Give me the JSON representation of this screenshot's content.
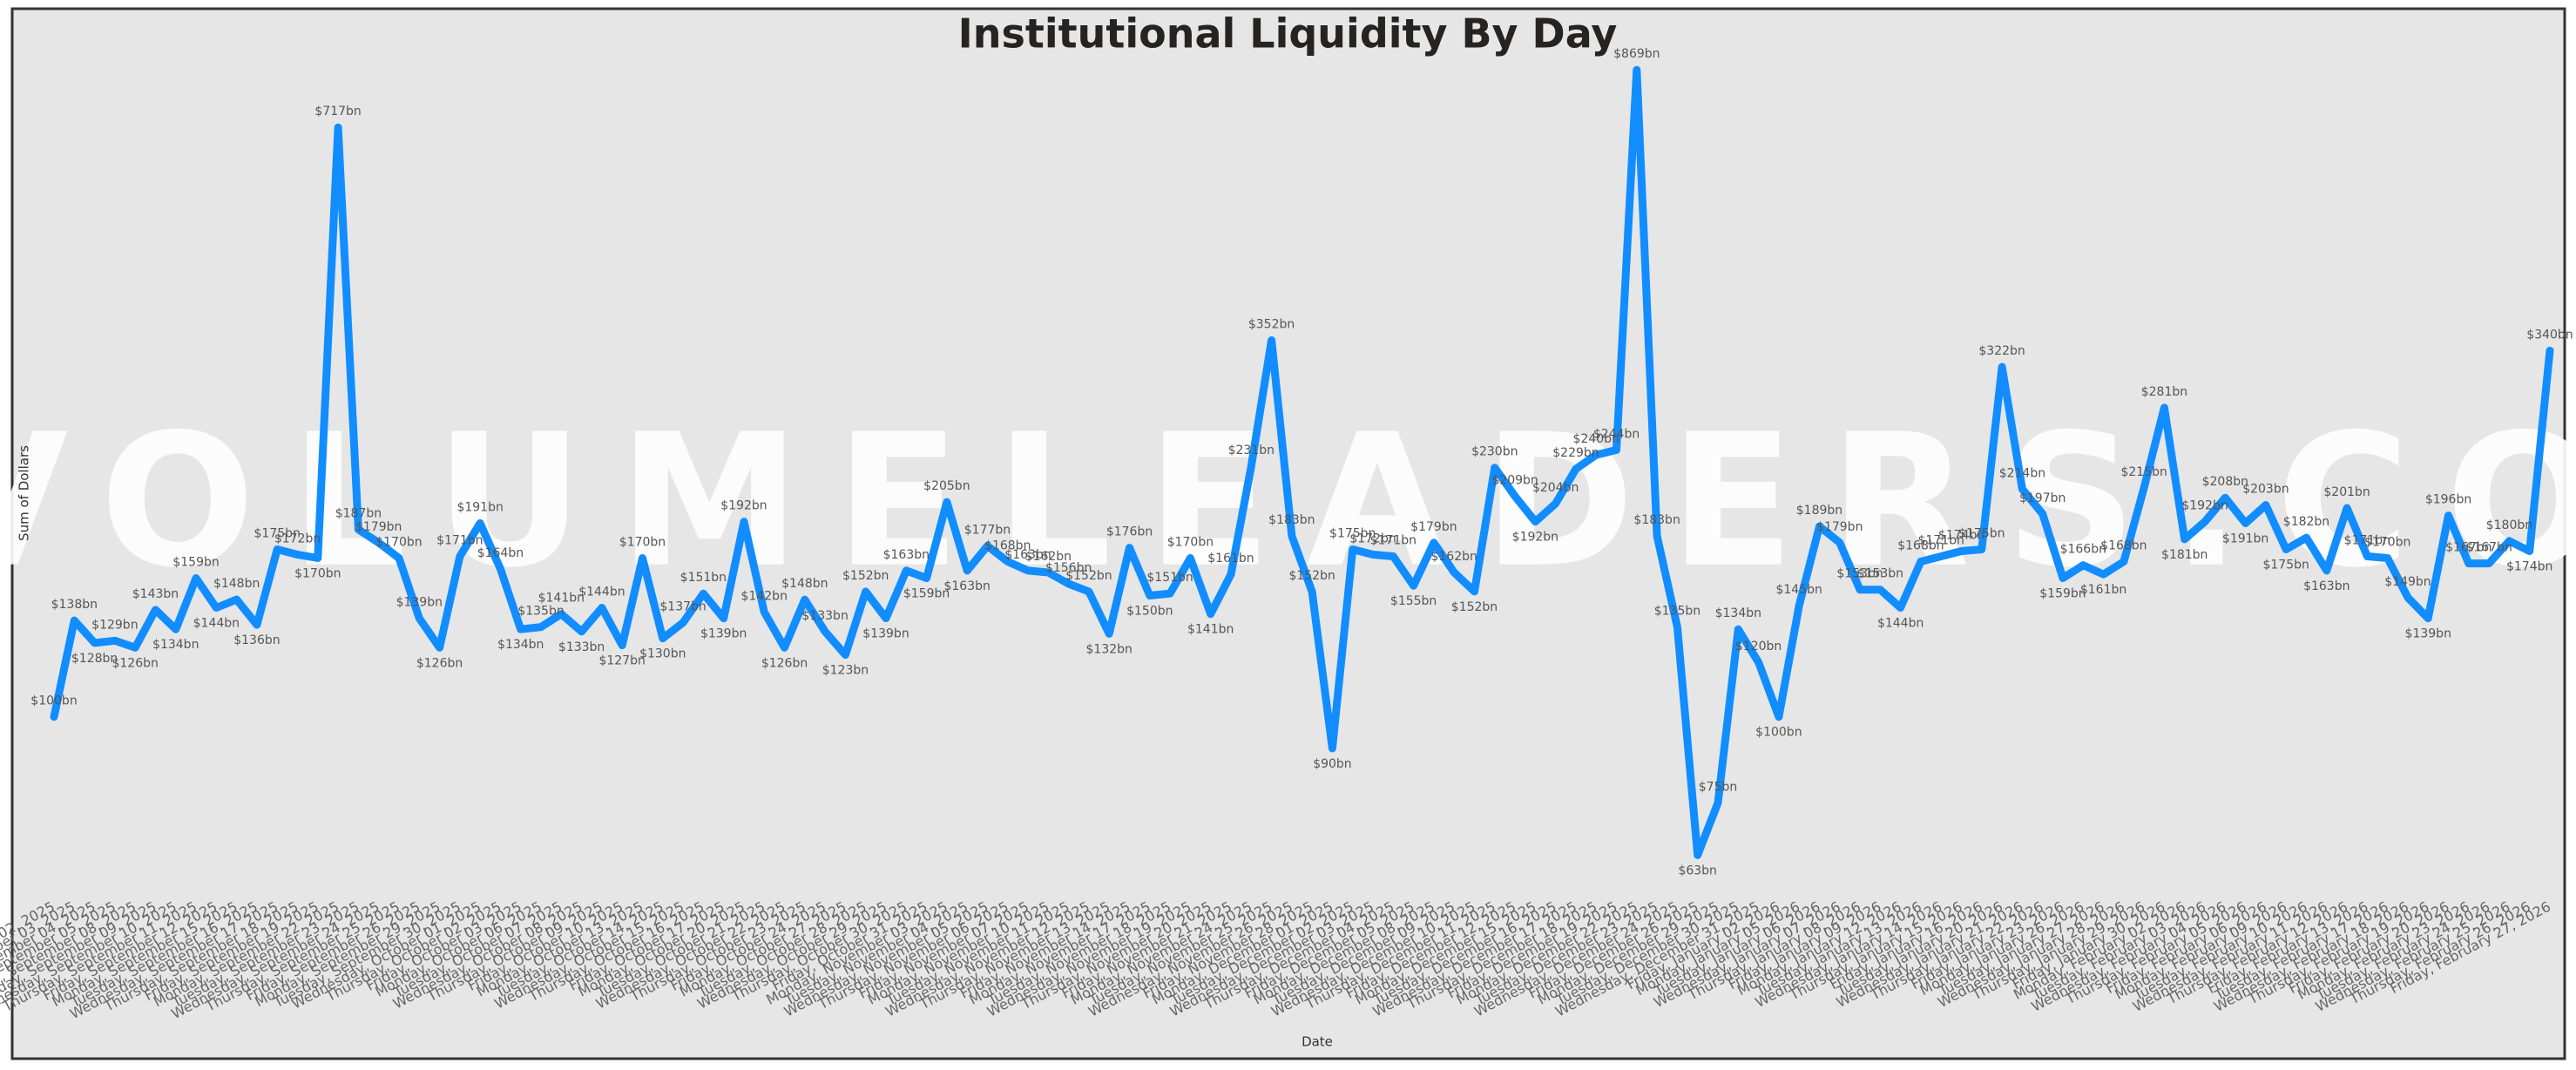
{
  "chart_data": {
    "type": "line",
    "title": "Institutional Liquidity By Day",
    "x_label": "Date",
    "y_label": "Sum of Dollars",
    "watermark": "VOLUMELEADERS.COM",
    "log_scale": true,
    "ylim": [
      55,
      890
    ],
    "grid": false,
    "categories": [
      "Tuesday, September 02, 2025",
      "Wednesday, September 03, 2025",
      "Thursday, September 04, 2025",
      "Friday, September 05, 2025",
      "Monday, September 08, 2025",
      "Tuesday, September 09, 2025",
      "Wednesday, September 10, 2025",
      "Thursday, September 11, 2025",
      "Friday, September 12, 2025",
      "Monday, September 15, 2025",
      "Tuesday, September 16, 2025",
      "Wednesday, September 17, 2025",
      "Thursday, September 18, 2025",
      "Friday, September 19, 2025",
      "Monday, September 22, 2025",
      "Tuesday, September 23, 2025",
      "Wednesday, September 24, 2025",
      "Thursday, September 25, 2025",
      "Friday, September 26, 2025",
      "Monday, September 29, 2025",
      "Tuesday, September 30, 2025",
      "Wednesday, October 01, 2025",
      "Thursday, October 02, 2025",
      "Friday, October 03, 2025",
      "Monday, October 06, 2025",
      "Tuesday, October 07, 2025",
      "Wednesday, October 08, 2025",
      "Thursday, October 09, 2025",
      "Friday, October 10, 2025",
      "Monday, October 13, 2025",
      "Tuesday, October 14, 2025",
      "Wednesday, October 15, 2025",
      "Thursday, October 16, 2025",
      "Friday, October 17, 2025",
      "Monday, October 20, 2025",
      "Tuesday, October 21, 2025",
      "Wednesday, October 22, 2025",
      "Thursday, October 23, 2025",
      "Friday, October 24, 2025",
      "Monday, October 27, 2025",
      "Tuesday, October 28, 2025",
      "Wednesday, October 29, 2025",
      "Thursday, October 30, 2025",
      "Friday, October 31, 2025",
      "Monday, November 03, 2025",
      "Tuesday, November 04, 2025",
      "Wednesday, November 05, 2025",
      "Thursday, November 06, 2025",
      "Friday, November 07, 2025",
      "Monday, November 10, 2025",
      "Tuesday, November 11, 2025",
      "Wednesday, November 12, 2025",
      "Thursday, November 13, 2025",
      "Friday, November 14, 2025",
      "Monday, November 17, 2025",
      "Tuesday, November 18, 2025",
      "Wednesday, November 19, 2025",
      "Thursday, November 20, 2025",
      "Friday, November 21, 2025",
      "Monday, November 24, 2025",
      "Tuesday, November 25, 2025",
      "Wednesday, November 26, 2025",
      "Friday, November 28, 2025",
      "Monday, December 01, 2025",
      "Tuesday, December 02, 2025",
      "Wednesday, December 03, 2025",
      "Thursday, December 04, 2025",
      "Friday, December 05, 2025",
      "Monday, December 08, 2025",
      "Tuesday, December 09, 2025",
      "Wednesday, December 10, 2025",
      "Thursday, December 11, 2025",
      "Friday, December 12, 2025",
      "Monday, December 15, 2025",
      "Tuesday, December 16, 2025",
      "Wednesday, December 17, 2025",
      "Thursday, December 18, 2025",
      "Friday, December 19, 2025",
      "Monday, December 22, 2025",
      "Tuesday, December 23, 2025",
      "Wednesday, December 24, 2025",
      "Friday, December 26, 2025",
      "Monday, December 29, 2025",
      "Tuesday, December 30, 2025",
      "Wednesday, December 31, 2025",
      "Friday, January 02, 2026",
      "Monday, January 05, 2026",
      "Tuesday, January 06, 2026",
      "Wednesday, January 07, 2026",
      "Thursday, January 08, 2026",
      "Friday, January 09, 2026",
      "Monday, January 12, 2026",
      "Tuesday, January 13, 2026",
      "Wednesday, January 14, 2026",
      "Thursday, January 15, 2026",
      "Friday, January 16, 2026",
      "Tuesday, January 20, 2026",
      "Wednesday, January 21, 2026",
      "Thursday, January 22, 2026",
      "Friday, January 23, 2026",
      "Monday, January 26, 2026",
      "Tuesday, January 27, 2026",
      "Wednesday, January 28, 2026",
      "Thursday, January 29, 2026",
      "Friday, January 30, 2026",
      "Monday, February 02, 2026",
      "Tuesday, February 03, 2026",
      "Wednesday, February 04, 2026",
      "Thursday, February 05, 2026",
      "Friday, February 06, 2026",
      "Monday, February 09, 2026",
      "Tuesday, February 10, 2026",
      "Wednesday, February 11, 2026",
      "Thursday, February 12, 2026",
      "Friday, February 13, 2026",
      "Tuesday, February 17, 2026",
      "Wednesday, February 18, 2026",
      "Thursday, February 19, 2026",
      "Friday, February 20, 2026",
      "Monday, February 23, 2026",
      "Tuesday, February 24, 2026",
      "Wednesday, February 25, 2026",
      "Thursday, February 26, 2026",
      "Friday, February 27, 2026"
    ],
    "series": [
      {
        "name": "Sum of Dollars",
        "color": "#118dff",
        "values": [
          100,
          138,
          128,
          129,
          126,
          143,
          134,
          159,
          144,
          148,
          136,
          175,
          172,
          170,
          717,
          187,
          179,
          170,
          139,
          126,
          171,
          191,
          164,
          134,
          135,
          141,
          133,
          144,
          127,
          170,
          130,
          137,
          151,
          139,
          192,
          142,
          126,
          148,
          133,
          123,
          152,
          139,
          163,
          159,
          205,
          163,
          177,
          168,
          163,
          162,
          156,
          152,
          132,
          176,
          150,
          151,
          170,
          141,
          161,
          231,
          352,
          183,
          152,
          90,
          175,
          172,
          171,
          155,
          179,
          162,
          152,
          230,
          209,
          192,
          204,
          229,
          240,
          244,
          869,
          183,
          135,
          63,
          75,
          134,
          120,
          100,
          145,
          189,
          179,
          153,
          153,
          144,
          168,
          171,
          174,
          175,
          322,
          214,
          197,
          159,
          166,
          161,
          168,
          215,
          281,
          181,
          192,
          208,
          191,
          203,
          175,
          182,
          163,
          201,
          171,
          170,
          149,
          139,
          196,
          167,
          167,
          180,
          174,
          340
        ],
        "value_labels": [
          "$100bn",
          "$138bn",
          "$128bn",
          "$129bn",
          "$126bn",
          "$143bn",
          "$134bn",
          "$159bn",
          "$144bn",
          "$148bn",
          "$136bn",
          "$175bn",
          "$172bn",
          "$170bn",
          "$717bn",
          "$187bn",
          "$179bn",
          "$170bn",
          "$139bn",
          "$126bn",
          "$171bn",
          "$191bn",
          "$164bn",
          "$134bn",
          "$135bn",
          "$141bn",
          "$133bn",
          "$144bn",
          "$127bn",
          "$170bn",
          "$130bn",
          "$137bn",
          "$151bn",
          "$139bn",
          "$192bn",
          "$142bn",
          "$126bn",
          "$148bn",
          "$133bn",
          "$123bn",
          "$152bn",
          "$139bn",
          "$163bn",
          "$159bn",
          "$205bn",
          "$163bn",
          "$177bn",
          "$168bn",
          "$163bn",
          "$162bn",
          "$156bn",
          "$152bn",
          "$132bn",
          "$176bn",
          "$150bn",
          "$151bn",
          "$170bn",
          "$141bn",
          "$161bn",
          "$231bn",
          "$352bn",
          "$183bn",
          "$152bn",
          "$90bn",
          "$175bn",
          "$172bn",
          "$171bn",
          "$155bn",
          "$179bn",
          "$162bn",
          "$152bn",
          "$230bn",
          "$209bn",
          "$192bn",
          "$204bn",
          "$229bn",
          "$240bn",
          "$244bn",
          "$869bn",
          "$183bn",
          "$135bn",
          "$63bn",
          "$75bn",
          "$134bn",
          "$120bn",
          "$100bn",
          "$145bn",
          "$189bn",
          "$179bn",
          "$153bn",
          "$153bn",
          "$144bn",
          "$168bn",
          "$171bn",
          "$174bn",
          "$175bn",
          "$322bn",
          "$214bn",
          "$197bn",
          "$159bn",
          "$166bn",
          "$161bn",
          "$168bn",
          "$215bn",
          "$281bn",
          "$181bn",
          "$192bn",
          "$208bn",
          "$191bn",
          "$203bn",
          "$175bn",
          "$182bn",
          "$163bn",
          "$201bn",
          "$171bn",
          "$170bn",
          "$149bn",
          "$139bn",
          "$196bn",
          "$167bn",
          "$167bn",
          "$180bn",
          "$174bn",
          "$340bn"
        ]
      }
    ]
  }
}
